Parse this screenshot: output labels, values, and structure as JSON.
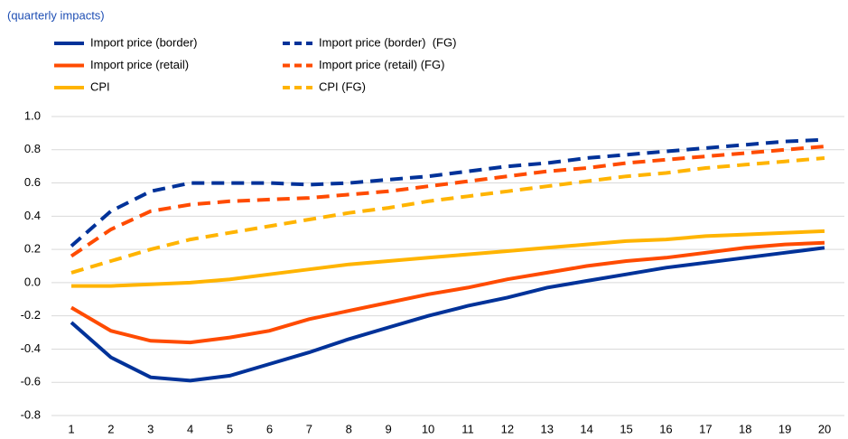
{
  "chart_data": {
    "type": "line",
    "subtitle": "(quarterly impacts)",
    "categories": [
      "1",
      "2",
      "3",
      "4",
      "5",
      "6",
      "7",
      "8",
      "9",
      "10",
      "11",
      "12",
      "13",
      "14",
      "15",
      "16",
      "17",
      "18",
      "19",
      "20"
    ],
    "series": [
      {
        "name": "Import price (border)",
        "color": "#003299",
        "dashed": false,
        "values": [
          -0.24,
          -0.45,
          -0.57,
          -0.59,
          -0.56,
          -0.49,
          -0.42,
          -0.34,
          -0.27,
          -0.2,
          -0.14,
          -0.09,
          -0.03,
          0.01,
          0.05,
          0.09,
          0.12,
          0.15,
          0.18,
          0.21
        ]
      },
      {
        "name": "Import price (retail)",
        "color": "#ff4b00",
        "dashed": false,
        "values": [
          -0.15,
          -0.29,
          -0.35,
          -0.36,
          -0.33,
          -0.29,
          -0.22,
          -0.17,
          -0.12,
          -0.07,
          -0.03,
          0.02,
          0.06,
          0.1,
          0.13,
          0.15,
          0.18,
          0.21,
          0.23,
          0.24
        ]
      },
      {
        "name": "CPI",
        "color": "#ffb400",
        "dashed": false,
        "values": [
          -0.02,
          -0.02,
          -0.01,
          0.0,
          0.02,
          0.05,
          0.08,
          0.11,
          0.13,
          0.15,
          0.17,
          0.19,
          0.21,
          0.23,
          0.25,
          0.26,
          0.28,
          0.29,
          0.3,
          0.31
        ]
      },
      {
        "name": "Import price (border)  (FG)",
        "color": "#003299",
        "dashed": true,
        "values": [
          0.22,
          0.43,
          0.55,
          0.6,
          0.6,
          0.6,
          0.59,
          0.6,
          0.62,
          0.64,
          0.67,
          0.7,
          0.72,
          0.75,
          0.77,
          0.79,
          0.81,
          0.83,
          0.85,
          0.86
        ]
      },
      {
        "name": "Import price (retail) (FG)",
        "color": "#ff4b00",
        "dashed": true,
        "values": [
          0.16,
          0.32,
          0.43,
          0.47,
          0.49,
          0.5,
          0.51,
          0.53,
          0.55,
          0.58,
          0.61,
          0.64,
          0.67,
          0.69,
          0.72,
          0.74,
          0.76,
          0.78,
          0.8,
          0.82
        ]
      },
      {
        "name": "CPI (FG)",
        "color": "#ffb400",
        "dashed": true,
        "values": [
          0.06,
          0.13,
          0.2,
          0.26,
          0.3,
          0.34,
          0.38,
          0.42,
          0.45,
          0.49,
          0.52,
          0.55,
          0.58,
          0.61,
          0.64,
          0.66,
          0.69,
          0.71,
          0.73,
          0.75
        ]
      }
    ],
    "ylim": [
      -0.8,
      1.0
    ],
    "yticks": [
      {
        "value": 1.0,
        "label": "1.0"
      },
      0.8,
      0.6,
      0.4,
      0.2,
      {
        "value": 0,
        "label": "0.0"
      },
      -0.2,
      -0.4,
      -0.6,
      -0.8
    ],
    "grid": true
  }
}
